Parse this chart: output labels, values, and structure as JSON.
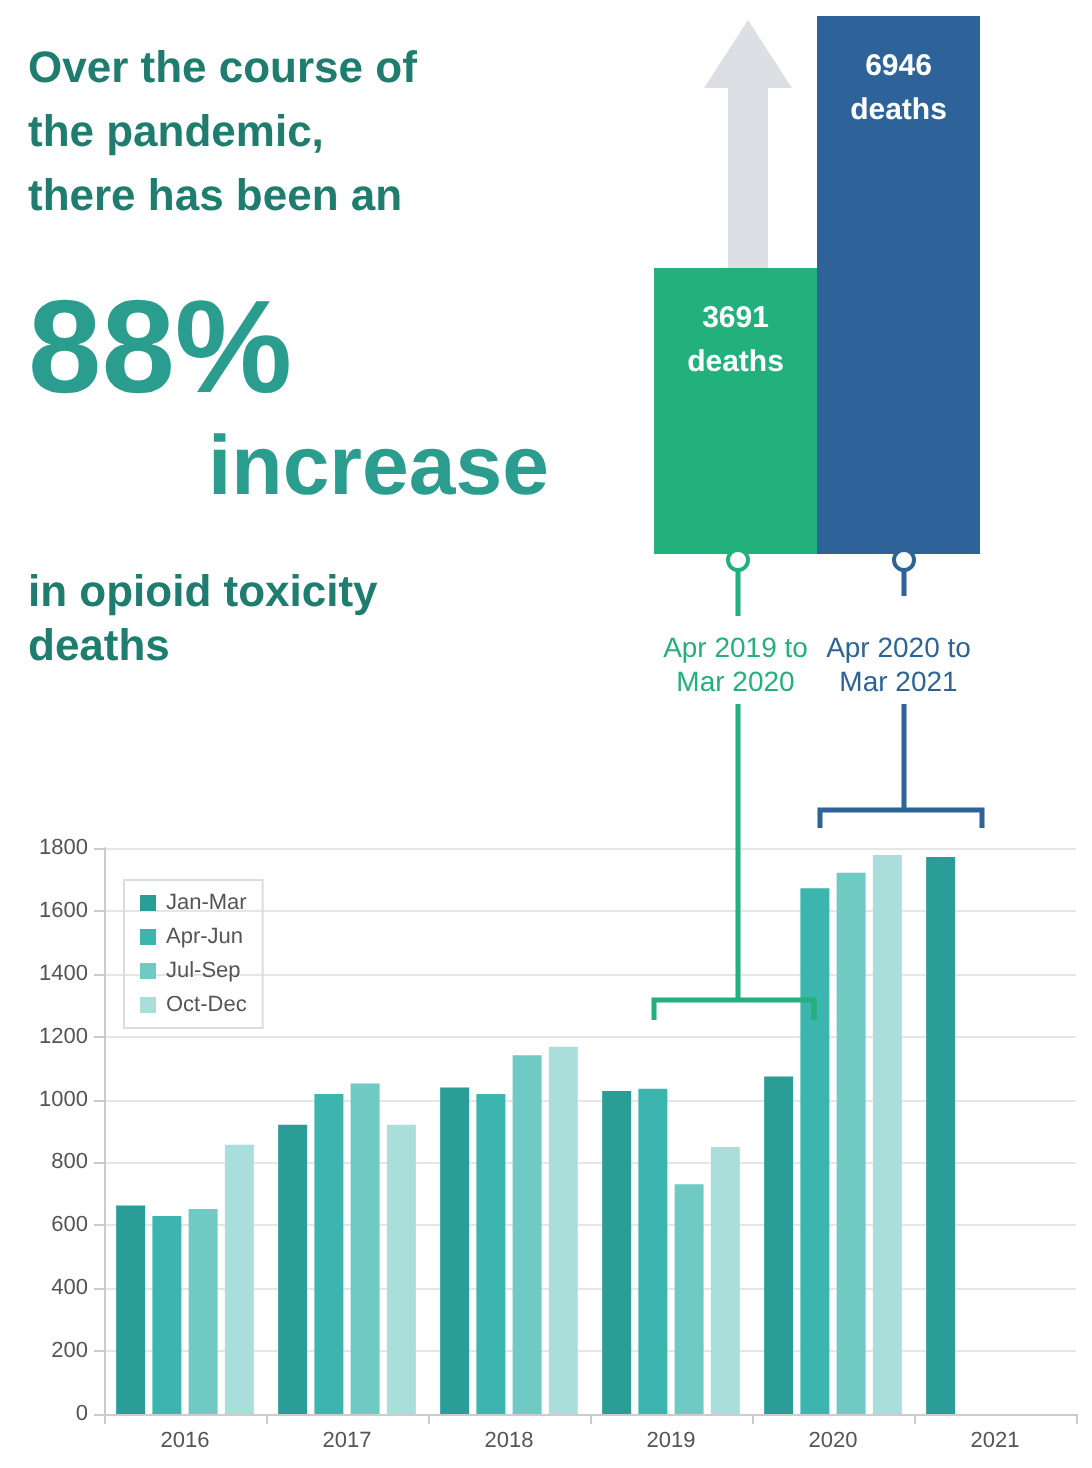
{
  "chart_data": [
    {
      "type": "bar",
      "title": "Over the course of the pandemic, there has been an",
      "annotations": [
        "88%",
        "increase",
        "in opioid toxicity deaths"
      ],
      "categories": [
        "Apr 2019 to\nMar 2020",
        "Apr 2020 to\nMar 2021"
      ],
      "values": [
        3691,
        6946
      ],
      "colors": [
        "#22b07d",
        "#2d6399"
      ],
      "value_labels": [
        "3691\ndeaths",
        "6946\ndeaths"
      ]
    },
    {
      "type": "bar",
      "categories": [
        "2016",
        "2017",
        "2018",
        "2019",
        "2020",
        "2021"
      ],
      "series": [
        {
          "name": "Jan-Mar",
          "color": "#2a9d96",
          "values": [
            663,
            920,
            1038,
            1027,
            1073,
            1771
          ]
        },
        {
          "name": "Apr-Jun",
          "color": "#3cb5ae",
          "values": [
            630,
            1018,
            1018,
            1034,
            1672,
            null
          ]
        },
        {
          "name": "Jul-Sep",
          "color": "#6fcac4",
          "values": [
            652,
            1051,
            1141,
            731,
            1721,
            null
          ]
        },
        {
          "name": "Oct-Dec",
          "color": "#a9dedb",
          "values": [
            856,
            920,
            1168,
            849,
            1778,
            null
          ]
        }
      ],
      "ylim": [
        0,
        1800
      ],
      "yticks": [
        0,
        200,
        400,
        600,
        800,
        1000,
        1200,
        1400,
        1600,
        1800
      ],
      "grid": "y",
      "legend": "top left"
    }
  ]
}
